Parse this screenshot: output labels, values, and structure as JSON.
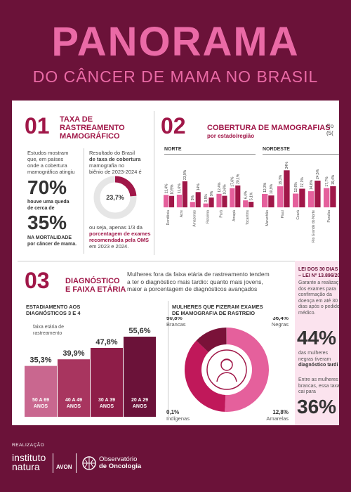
{
  "header": {
    "title": "PANORAMA",
    "subtitle": "DO CÂNCER DE MAMA NO BRASIL"
  },
  "sec1": {
    "number": "01",
    "title_lines": [
      "TAXA DE",
      "RASTREAMENTO",
      "MAMOGRÁFICO"
    ],
    "intro": [
      "Estudos mostram",
      "que, em países",
      "onde a cobertura",
      "mamográfica atingiu"
    ],
    "stat1": "70%",
    "stat1_text": [
      "houve uma queda",
      "de cerca de"
    ],
    "stat2": "35%",
    "stat2_text": [
      "NA MORTALIDADE",
      "por câncer de mama."
    ],
    "brazil_text": [
      "Resultado do Brasil",
      "de taxa de cobertura",
      "mamografia no",
      "biênio de 2023-2024 é"
    ],
    "donut_value": "23,7%",
    "donut_fraction": 0.237,
    "note": [
      "ou seja, apenas 1/3 da",
      "porcentagem de exames",
      "recomendada pela OMS",
      "em 2023 e 2024."
    ]
  },
  "sec2": {
    "number": "02",
    "title": "COBERTURA DE MAMOGRAFIAS",
    "subtitle": "por estado/região",
    "cut_text": [
      "Co",
      "(5("
    ],
    "norte": {
      "label": "NORTE",
      "states": [
        "Rondônia",
        "Acre",
        "Amazonas",
        "Roraima",
        "Pará",
        "Amapá",
        "Tocantins"
      ],
      "values": [
        "11,4%",
        "10,5%",
        "11,6%",
        "23,9%",
        "5%",
        "14%",
        "3,5%",
        "9%",
        "12,4%",
        "10,6%",
        "17,6%",
        "20,1%",
        "6,4%",
        "5,1%"
      ]
    },
    "nordeste": {
      "label": "NORDESTE",
      "states": [
        "Maranhão",
        "Piauí",
        "Ceará",
        "Rio Grande do Norte",
        "Paraíba"
      ],
      "values": [
        "12,3%",
        "10,9%",
        "19,3%",
        "34%",
        "12,6%",
        "17,1%",
        "14,8%",
        "24,5%",
        "17,7%",
        "19,4%"
      ]
    }
  },
  "sec3": {
    "number": "03",
    "title_lines": [
      "DIAGNÓSTICO",
      "E FAIXA ETÁRIA"
    ],
    "intro": [
      "Mulheres fora da faixa etária de rastreamento tendem",
      "a ter o diagnóstico mais tardio: quanto mais jovens,",
      "maior a porcentagem de diagnósticos avançados"
    ],
    "bars_title": [
      "ESTADIAMENTO AOS",
      "DIAGNÓSTICOS 3 E 4"
    ],
    "bars_note": [
      "faixa etária de",
      "rastreamento"
    ],
    "bars": [
      {
        "value": 35.3,
        "label": "35,3%",
        "age": [
          "50 A 69",
          "ANOS"
        ]
      },
      {
        "value": 39.9,
        "label": "39,9%",
        "age": [
          "40 A 49",
          "ANOS"
        ]
      },
      {
        "value": 47.8,
        "label": "47,8%",
        "age": [
          "30 A 39",
          "ANOS"
        ]
      },
      {
        "value": 55.6,
        "label": "55,6%",
        "age": [
          "20 A 29",
          "ANOS"
        ]
      }
    ],
    "donut_title": [
      "MULHERES QUE FIZERAM EXAMES",
      "DE MAMOGRAFIA DE RASTREIO"
    ],
    "donut": [
      {
        "value": 50.8,
        "label": "50,8%",
        "name": "Brancas",
        "color": "#e5609c"
      },
      {
        "value": 36.4,
        "label": "36,4%",
        "name": "Negras",
        "color": "#c0185a"
      },
      {
        "value": 12.8,
        "label": "12,8%",
        "name": "Amarelas",
        "color": "#7a1239"
      },
      {
        "value": 0.1,
        "label": "0,1%",
        "name": "Indígenas",
        "color": "#f3a9c9"
      }
    ]
  },
  "law": {
    "title": [
      "LEI DOS 30 DIAS",
      "– LEI Nº 13.896/20"
    ],
    "text": [
      "Garante a realizaç",
      "dos exames para",
      "confirmação da",
      "doença em até 30",
      "dias após o pedido",
      "médico."
    ],
    "stat1": "44%",
    "stat1_text": [
      "das mulheres",
      "negras tiveram",
      "diagnóstico tardi"
    ],
    "text2": [
      "Entre as mulheres",
      "brancas, essa taxa",
      "cai para"
    ],
    "stat2": "36%"
  },
  "footer": {
    "realizacao": "REALIZAÇÃO",
    "logo1": [
      "instituto",
      "natura"
    ],
    "logo2": "AVON",
    "logo3": [
      "Observatório",
      "de Oncologia"
    ]
  },
  "colors": {
    "background": "#6b1239",
    "accent": "#ea6aa6",
    "wine": "#a01748",
    "pink_bar": "#e5609c",
    "dark_bar": "#a01748"
  }
}
